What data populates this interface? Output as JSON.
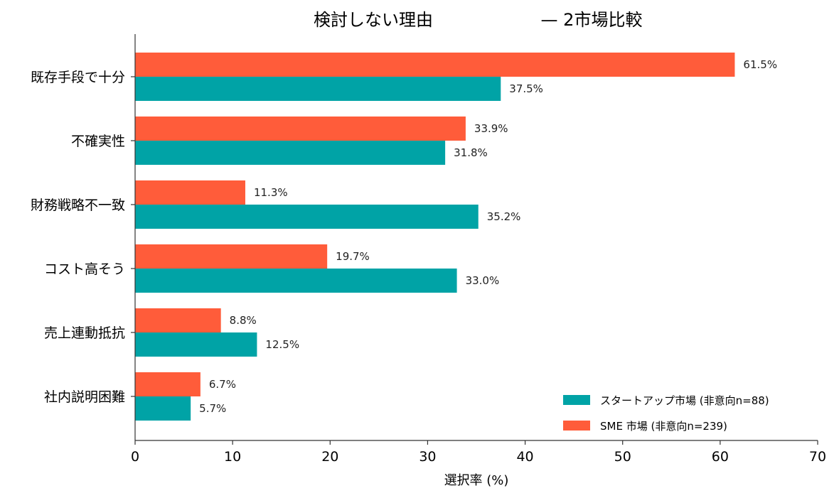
{
  "chart_data": {
    "type": "bar",
    "orientation": "horizontal",
    "title_left": "検討しない理由",
    "title_right": "— 2市場比較",
    "xlabel": "選択率 (%)",
    "ylabel": "",
    "xlim": [
      0,
      70
    ],
    "xticks": [
      "0",
      "10",
      "20",
      "30",
      "40",
      "50",
      "60",
      "70"
    ],
    "categories": [
      "既存手段で十分",
      "不確実性",
      "財務戦略不一致",
      "コスト高そう",
      "売上連動抵抗",
      "社内説明困難"
    ],
    "series": [
      {
        "name": "スタートアップ市場 (非意向n=88)",
        "color": "#00A3A6",
        "values": [
          37.5,
          31.8,
          35.2,
          33.0,
          12.5,
          5.7
        ],
        "labels": [
          "37.5%",
          "31.8%",
          "35.2%",
          "33.0%",
          "12.5%",
          "5.7%"
        ]
      },
      {
        "name": "SME 市場 (非意向n=239)",
        "color": "#FF5C3A",
        "values": [
          61.5,
          33.9,
          11.3,
          19.7,
          8.8,
          6.7
        ],
        "labels": [
          "61.5%",
          "33.9%",
          "11.3%",
          "19.7%",
          "8.8%",
          "6.7%"
        ]
      }
    ],
    "grid": false,
    "legend_position": "lower-right"
  }
}
